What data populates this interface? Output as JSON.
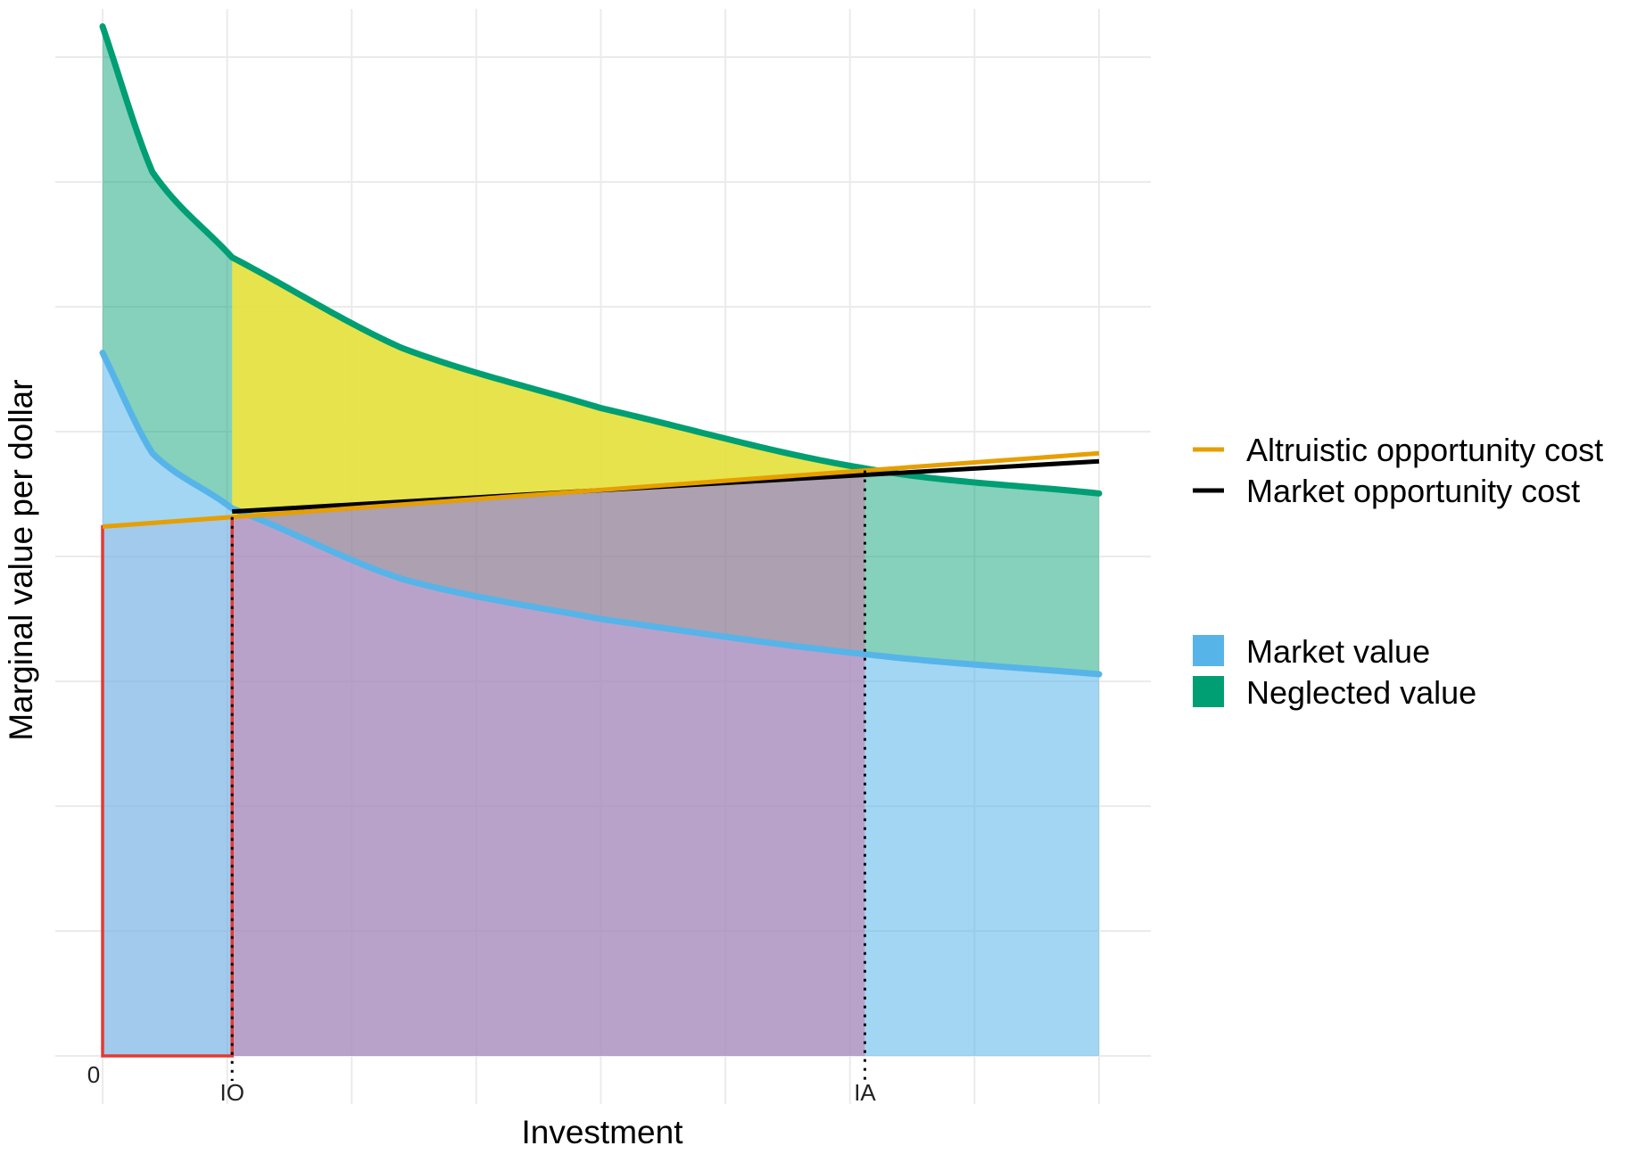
{
  "chart_data": {
    "type": "area",
    "title": "",
    "xlabel": "Investment",
    "ylabel": "Marginal value per dollar",
    "xlim": [
      0,
      1
    ],
    "ylim": [
      0,
      1.03
    ],
    "grid": true,
    "x_ticks": [
      {
        "x": 0,
        "label": "0"
      },
      {
        "x": 0.13,
        "label": "IO"
      },
      {
        "x": 0.765,
        "label": "IA"
      }
    ],
    "reference_points": {
      "IO": 0.13,
      "IA": 0.765
    },
    "series": [
      {
        "name": "Market value",
        "kind": "area",
        "color": "#56B4E9",
        "x": [
          0,
          0.05,
          0.13,
          0.3,
          0.5,
          0.765,
          1.0
        ],
        "y": [
          0.7,
          0.6,
          0.545,
          0.475,
          0.435,
          0.4,
          0.38
        ]
      },
      {
        "name": "Neglected value",
        "kind": "area",
        "color": "#009E73",
        "x": [
          0,
          0.05,
          0.13,
          0.3,
          0.5,
          0.765,
          1.0
        ],
        "y": [
          1.025,
          0.88,
          0.795,
          0.705,
          0.645,
          0.585,
          0.56
        ]
      },
      {
        "name": "Altruistic opportunity cost",
        "kind": "line",
        "color": "#E69F00",
        "x": [
          0,
          1.0
        ],
        "y": [
          0.527,
          0.6
        ]
      },
      {
        "name": "Market opportunity cost",
        "kind": "line",
        "color": "#000000",
        "x": [
          0.13,
          1.0
        ],
        "y": [
          0.542,
          0.592
        ]
      }
    ],
    "highlight_regions": [
      {
        "name": "surplus-region",
        "color": "#F0E442",
        "x_range": [
          0.13,
          0.765
        ]
      },
      {
        "name": "cost-region",
        "color": "#CC79A7",
        "x_range": [
          0.13,
          0.765
        ]
      },
      {
        "name": "outlined-region",
        "color": "#E53935",
        "x_range": [
          0,
          0.13
        ]
      }
    ],
    "legend": {
      "position": "right",
      "lines": [
        "Altruistic opportunity cost",
        "Market opportunity cost"
      ],
      "fills": [
        "Market value",
        "Neglected value"
      ]
    }
  }
}
